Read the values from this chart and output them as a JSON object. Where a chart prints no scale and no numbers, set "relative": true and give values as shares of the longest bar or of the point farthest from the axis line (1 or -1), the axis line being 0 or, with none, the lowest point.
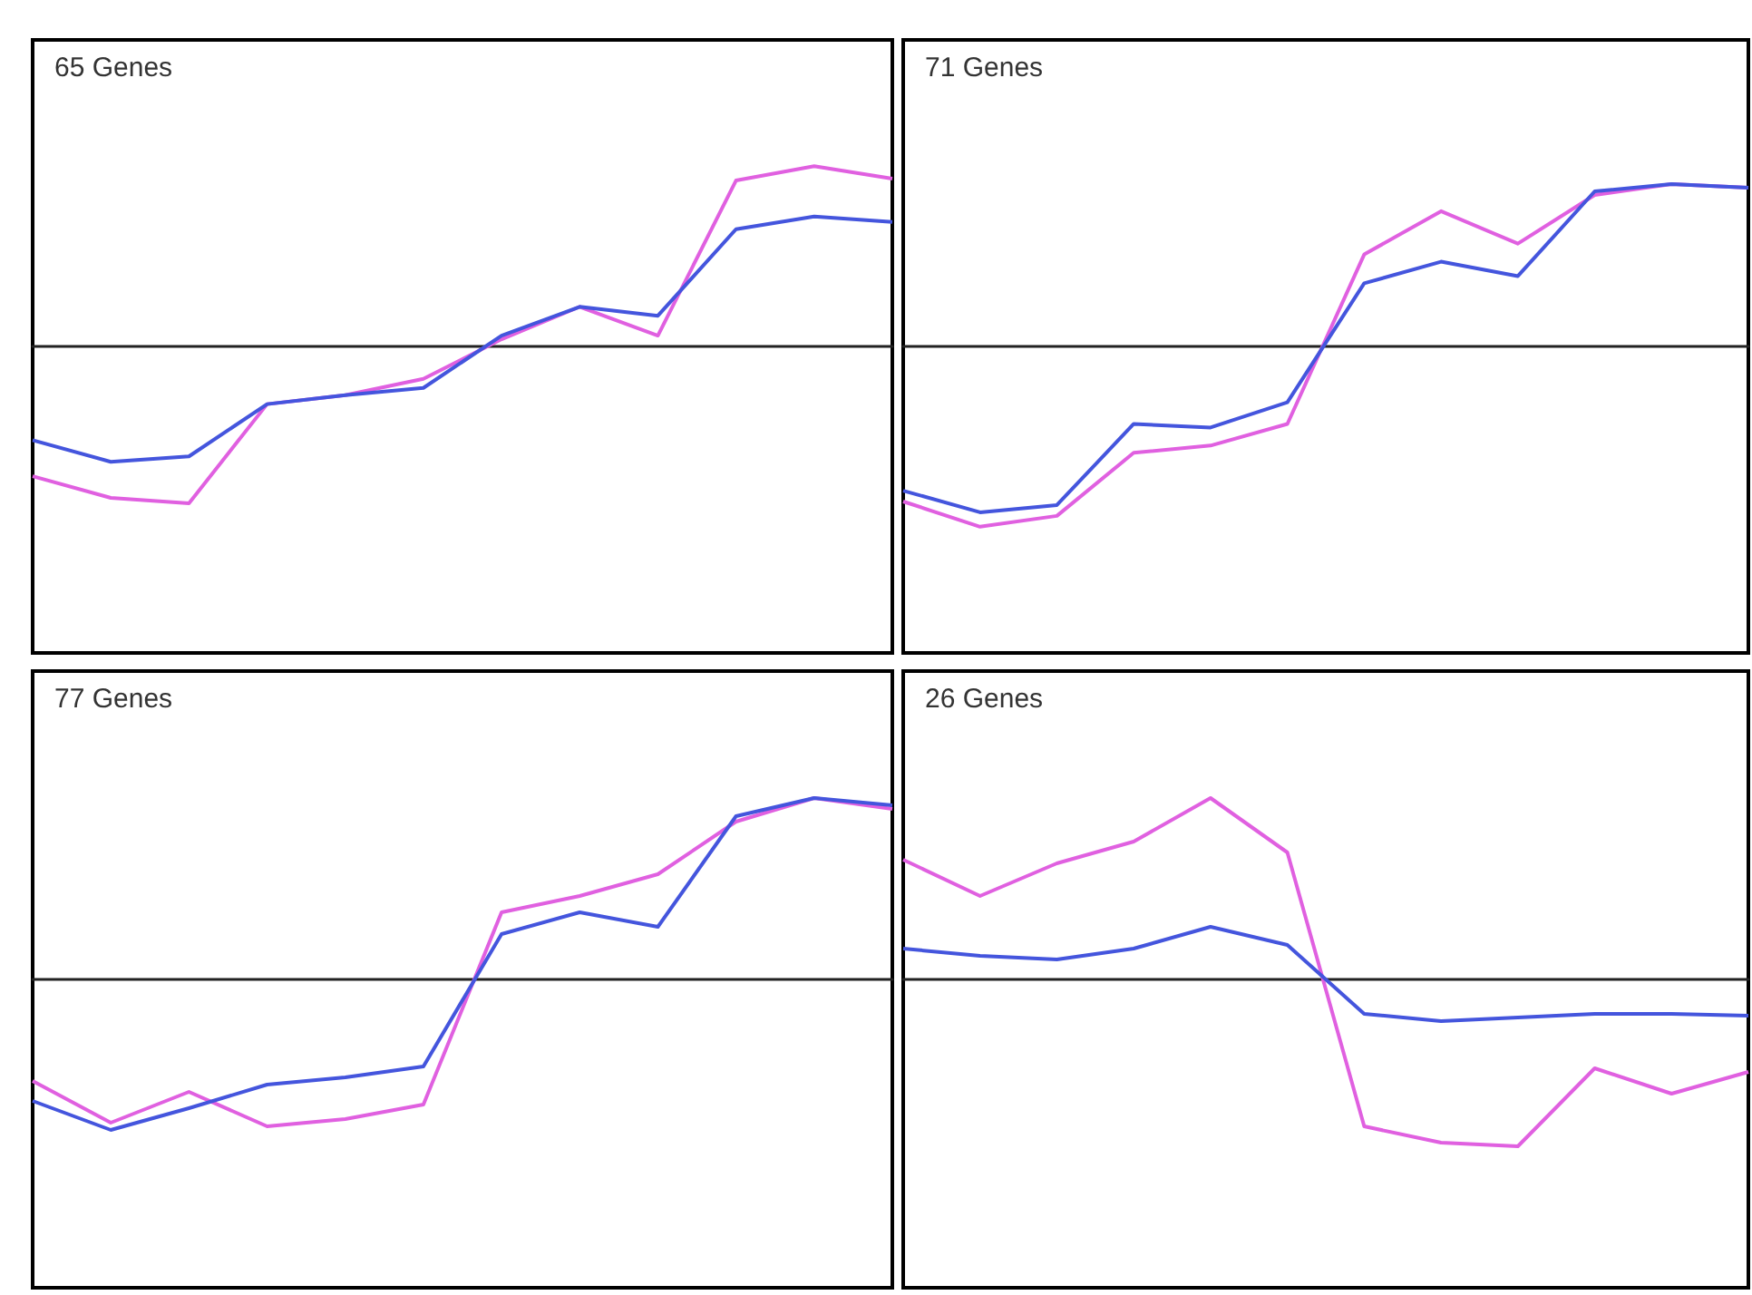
{
  "chart_data": [
    {
      "type": "line",
      "relative": true,
      "annotations": [
        "65 Genes"
      ],
      "categories": [
        null,
        null,
        null,
        null,
        null,
        null,
        null,
        null,
        null,
        null,
        null,
        null
      ],
      "series": [
        {
          "color": "#e060e0",
          "values": [
            -0.72,
            -0.84,
            -0.87,
            -0.32,
            -0.27,
            -0.18,
            0.04,
            0.22,
            0.06,
            0.92,
            1.0,
            0.93
          ]
        },
        {
          "color": "#4455dd",
          "values": [
            -0.52,
            -0.64,
            -0.61,
            -0.32,
            -0.27,
            -0.23,
            0.06,
            0.22,
            0.17,
            0.65,
            0.72,
            0.69
          ]
        }
      ]
    },
    {
      "type": "line",
      "relative": true,
      "annotations": [
        "71 Genes"
      ],
      "categories": [
        null,
        null,
        null,
        null,
        null,
        null,
        null,
        null,
        null,
        null,
        null,
        null
      ],
      "series": [
        {
          "color": "#e060e0",
          "values": [
            -0.86,
            -1.0,
            -0.94,
            -0.59,
            -0.55,
            -0.43,
            0.51,
            0.75,
            0.57,
            0.84,
            0.9,
            0.88
          ]
        },
        {
          "color": "#4455dd",
          "values": [
            -0.8,
            -0.92,
            -0.88,
            -0.43,
            -0.45,
            -0.31,
            0.35,
            0.47,
            0.39,
            0.86,
            0.9,
            0.88
          ]
        }
      ]
    },
    {
      "type": "line",
      "relative": true,
      "annotations": [
        "77 Genes"
      ],
      "categories": [
        null,
        null,
        null,
        null,
        null,
        null,
        null,
        null,
        null,
        null,
        null,
        null
      ],
      "series": [
        {
          "color": "#e060e0",
          "values": [
            -0.56,
            -0.79,
            -0.62,
            -0.81,
            -0.77,
            -0.69,
            0.37,
            0.46,
            0.58,
            0.87,
            1.0,
            0.94
          ]
        },
        {
          "color": "#4455dd",
          "values": [
            -0.67,
            -0.83,
            -0.71,
            -0.58,
            -0.54,
            -0.48,
            0.25,
            0.37,
            0.29,
            0.9,
            1.0,
            0.96
          ]
        }
      ]
    },
    {
      "type": "line",
      "relative": true,
      "annotations": [
        "26 Genes"
      ],
      "categories": [
        null,
        null,
        null,
        null,
        null,
        null,
        null,
        null,
        null,
        null,
        null,
        null
      ],
      "series": [
        {
          "color": "#e060e0",
          "values": [
            0.66,
            0.46,
            0.64,
            0.76,
            1.0,
            0.7,
            -0.81,
            -0.9,
            -0.92,
            -0.49,
            -0.63,
            -0.51
          ]
        },
        {
          "color": "#4455dd",
          "values": [
            0.17,
            0.13,
            0.11,
            0.17,
            0.29,
            0.19,
            -0.19,
            -0.23,
            -0.21,
            -0.19,
            -0.19,
            -0.2
          ]
        }
      ]
    }
  ]
}
